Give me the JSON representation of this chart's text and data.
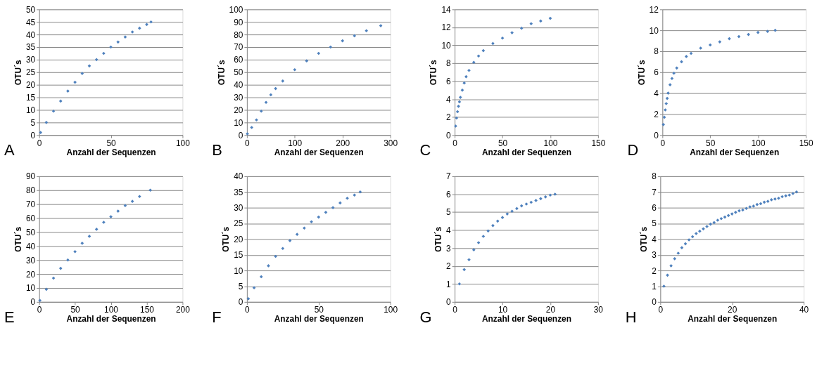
{
  "chart_data": [
    {
      "type": "scatter",
      "xlabel": "Anzahl der Sequenzen",
      "ylabel": "OTU´s",
      "annotations": [
        "A"
      ],
      "grid": "y",
      "marker": "diamond",
      "xlim": [
        0,
        100
      ],
      "xticks": [
        0,
        50,
        100
      ],
      "ylim": [
        0,
        50
      ],
      "yticks": [
        0,
        5,
        10,
        15,
        20,
        25,
        30,
        35,
        40,
        45,
        50
      ],
      "series": [
        {
          "color": "#4f81bd",
          "x": [
            1,
            5,
            10,
            15,
            20,
            25,
            30,
            35,
            40,
            45,
            50,
            55,
            60,
            65,
            70,
            75,
            78
          ],
          "values": [
            1,
            5,
            9.5,
            13.5,
            17.5,
            21,
            24.5,
            27.5,
            30,
            32.5,
            35,
            37,
            39,
            41,
            42.5,
            44,
            45
          ]
        }
      ]
    },
    {
      "type": "scatter",
      "xlabel": "Anzahl der Sequenzen",
      "ylabel": "OTU´s",
      "annotations": [
        "B"
      ],
      "grid": "y",
      "marker": "diamond",
      "xlim": [
        0,
        300
      ],
      "xticks": [
        0,
        100,
        200,
        300
      ],
      "ylim": [
        0,
        100
      ],
      "yticks": [
        0,
        10,
        20,
        30,
        40,
        50,
        60,
        70,
        80,
        90,
        100
      ],
      "series": [
        {
          "color": "#4f81bd",
          "x": [
            1,
            10,
            20,
            30,
            40,
            50,
            60,
            75,
            100,
            125,
            150,
            175,
            200,
            225,
            250,
            280
          ],
          "values": [
            1,
            6,
            12,
            19,
            26,
            32,
            37,
            43,
            52,
            59,
            65,
            70,
            75,
            79,
            83,
            87
          ]
        }
      ]
    },
    {
      "type": "scatter",
      "xlabel": "Anzahl der Sequenzen",
      "ylabel": "OTU´s",
      "annotations": [
        "C"
      ],
      "grid": "y",
      "marker": "diamond",
      "xlim": [
        0,
        150
      ],
      "xticks": [
        0,
        50,
        100,
        150
      ],
      "ylim": [
        0,
        14
      ],
      "yticks": [
        0,
        2,
        4,
        6,
        8,
        10,
        12,
        14
      ],
      "series": [
        {
          "color": "#4f81bd",
          "x": [
            1,
            2,
            3,
            4,
            5,
            6,
            8,
            10,
            12,
            15,
            20,
            25,
            30,
            40,
            50,
            60,
            70,
            80,
            90,
            100
          ],
          "values": [
            1,
            1.9,
            2.6,
            3.2,
            3.7,
            4.2,
            5,
            5.8,
            6.5,
            7.2,
            8.1,
            8.8,
            9.4,
            10.2,
            10.8,
            11.4,
            11.9,
            12.4,
            12.7,
            13
          ]
        }
      ]
    },
    {
      "type": "scatter",
      "xlabel": "Anzahl der Sequenzen",
      "ylabel": "OTU´s",
      "annotations": [
        "D"
      ],
      "grid": "y",
      "marker": "diamond",
      "xlim": [
        0,
        150
      ],
      "xticks": [
        0,
        50,
        100,
        150
      ],
      "ylim": [
        0,
        12
      ],
      "yticks": [
        0,
        2,
        4,
        6,
        8,
        10,
        12
      ],
      "series": [
        {
          "color": "#4f81bd",
          "x": [
            1,
            2,
            3,
            4,
            5,
            6,
            8,
            10,
            12,
            15,
            20,
            25,
            30,
            40,
            50,
            60,
            70,
            80,
            90,
            100,
            110,
            118
          ],
          "values": [
            1,
            1.7,
            2.4,
            3,
            3.5,
            4,
            4.8,
            5.4,
            5.9,
            6.4,
            7,
            7.5,
            7.8,
            8.3,
            8.6,
            8.9,
            9.2,
            9.4,
            9.6,
            9.8,
            9.9,
            10
          ]
        }
      ]
    },
    {
      "type": "scatter",
      "xlabel": "Anzahl der Sequenzen",
      "ylabel": "OTU´s",
      "annotations": [
        "E"
      ],
      "grid": "y",
      "marker": "diamond",
      "xlim": [
        0,
        200
      ],
      "xticks": [
        0,
        50,
        100,
        150,
        200
      ],
      "ylim": [
        0,
        90
      ],
      "yticks": [
        0,
        10,
        20,
        30,
        40,
        50,
        60,
        70,
        80,
        90
      ],
      "series": [
        {
          "color": "#4f81bd",
          "x": [
            1,
            10,
            20,
            30,
            40,
            50,
            60,
            70,
            80,
            90,
            100,
            110,
            120,
            130,
            140,
            155
          ],
          "values": [
            1,
            9,
            17,
            24,
            30,
            36,
            42,
            47,
            52,
            57,
            61,
            65,
            69,
            72,
            75.5,
            80
          ]
        }
      ]
    },
    {
      "type": "scatter",
      "xlabel": "Anzahl der Sequenzen",
      "ylabel": "OTU´s",
      "annotations": [
        "F"
      ],
      "grid": "y",
      "marker": "diamond",
      "xlim": [
        0,
        100
      ],
      "xticks": [
        0,
        50,
        100
      ],
      "ylim": [
        0,
        40
      ],
      "yticks": [
        0,
        5,
        10,
        15,
        20,
        25,
        30,
        35,
        40
      ],
      "series": [
        {
          "color": "#4f81bd",
          "x": [
            1,
            5,
            10,
            15,
            20,
            25,
            30,
            35,
            40,
            45,
            50,
            55,
            60,
            65,
            70,
            75,
            79
          ],
          "values": [
            1,
            4.5,
            8,
            11.5,
            14.5,
            17,
            19.5,
            21.5,
            23.5,
            25.5,
            27,
            28.5,
            30,
            31.5,
            33,
            34,
            35
          ]
        }
      ]
    },
    {
      "type": "scatter",
      "xlabel": "Anzahl der Sequenzen",
      "ylabel": "OTU´s",
      "annotations": [
        "G"
      ],
      "grid": "y",
      "marker": "diamond",
      "xlim": [
        0,
        30
      ],
      "xticks": [
        0,
        10,
        20,
        30
      ],
      "ylim": [
        0,
        7
      ],
      "yticks": [
        0,
        1,
        2,
        3,
        4,
        5,
        6,
        7
      ],
      "series": [
        {
          "color": "#4f81bd",
          "x": [
            1,
            2,
            3,
            4,
            5,
            6,
            7,
            8,
            9,
            10,
            11,
            12,
            13,
            14,
            15,
            16,
            17,
            18,
            19,
            20,
            21
          ],
          "values": [
            1,
            1.8,
            2.35,
            2.9,
            3.3,
            3.65,
            3.95,
            4.25,
            4.5,
            4.7,
            4.9,
            5.05,
            5.2,
            5.35,
            5.45,
            5.55,
            5.65,
            5.75,
            5.85,
            5.95,
            6
          ]
        }
      ]
    },
    {
      "type": "scatter",
      "xlabel": "Anzahl der Sequenzen",
      "ylabel": "OTU´s",
      "annotations": [
        "H"
      ],
      "grid": "y",
      "marker": "diamond",
      "xlim": [
        0,
        40
      ],
      "xticks": [
        0,
        20,
        40
      ],
      "ylim": [
        0,
        8
      ],
      "yticks": [
        0,
        1,
        2,
        3,
        4,
        5,
        6,
        7,
        8
      ],
      "series": [
        {
          "color": "#4f81bd",
          "x": [
            1,
            2,
            3,
            4,
            5,
            6,
            7,
            8,
            9,
            10,
            11,
            12,
            13,
            14,
            15,
            16,
            17,
            18,
            19,
            20,
            21,
            22,
            23,
            24,
            25,
            26,
            27,
            28,
            29,
            30,
            31,
            32,
            33,
            34,
            35,
            36,
            37,
            38
          ],
          "values": [
            1,
            1.7,
            2.3,
            2.75,
            3.1,
            3.45,
            3.7,
            3.95,
            4.15,
            4.35,
            4.5,
            4.65,
            4.8,
            4.95,
            5.05,
            5.2,
            5.3,
            5.4,
            5.5,
            5.6,
            5.7,
            5.8,
            5.85,
            5.95,
            6.05,
            6.1,
            6.2,
            6.25,
            6.35,
            6.4,
            6.5,
            6.55,
            6.6,
            6.7,
            6.75,
            6.8,
            6.9,
            7
          ]
        }
      ]
    }
  ]
}
